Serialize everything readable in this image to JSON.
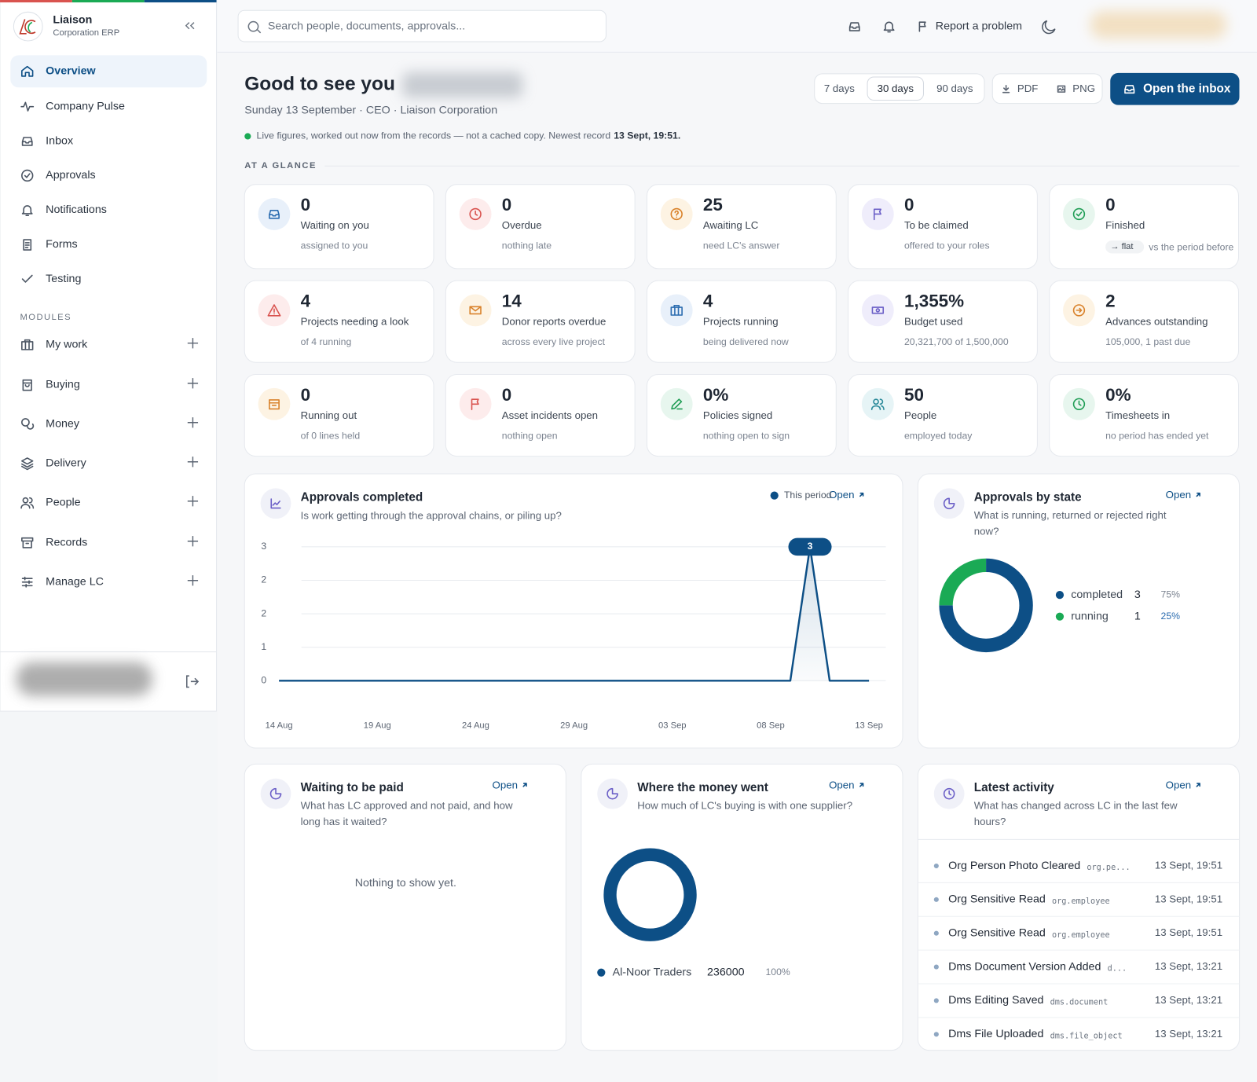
{
  "sidebar": {
    "brand": "Liaison",
    "brand_subtitle": "Corporation ERP",
    "nav": [
      "Overview",
      "Company Pulse",
      "Inbox",
      "Approvals",
      "Notifications",
      "Forms",
      "Testing"
    ],
    "nav_icons": [
      "home",
      "pulse",
      "inbox",
      "check",
      "bell",
      "forms",
      "tick"
    ],
    "active_nav": 0,
    "modules_heading": "MODULES",
    "modules": [
      "My work",
      "Buying",
      "Money",
      "Delivery",
      "People",
      "Records",
      "Manage LC"
    ],
    "module_icons": [
      "briefcase",
      "bag",
      "coins",
      "layers",
      "people",
      "archive",
      "sliders"
    ]
  },
  "topbar": {
    "search_placeholder": "Search people, documents, approvals...",
    "report_problem": "Report a problem"
  },
  "header": {
    "greeting": "Good to see you",
    "subtitle": "Sunday 13 September · CEO · Liaison Corporation",
    "live_note": "Live figures, worked out now from the records — not a cached copy. Newest record",
    "newest_record": "13 Sept, 19:51.",
    "ranges": [
      "7 days",
      "30 days",
      "90 days"
    ],
    "active_range": 1,
    "exports": [
      "PDF",
      "PNG"
    ],
    "open_inbox": "Open the inbox"
  },
  "glance": {
    "heading": "AT A GLANCE",
    "cards": [
      {
        "value": "0",
        "label": "Waiting on you",
        "note": "assigned to you",
        "tone": "blue",
        "icon": "inbox"
      },
      {
        "value": "0",
        "label": "Overdue",
        "note": "nothing late",
        "tone": "red",
        "icon": "clock"
      },
      {
        "value": "25",
        "label": "Awaiting LC",
        "note": "need LC's answer",
        "tone": "amber",
        "icon": "question"
      },
      {
        "value": "0",
        "label": "To be claimed",
        "note": "offered to your roles",
        "tone": "purple",
        "icon": "flag"
      },
      {
        "value": "0",
        "label": "Finished",
        "trend": "→ flat",
        "note": "vs the period before",
        "tone": "green",
        "icon": "check"
      },
      {
        "value": "4",
        "label": "Projects needing a look",
        "note": "of 4 running",
        "tone": "red",
        "icon": "alert"
      },
      {
        "value": "14",
        "label": "Donor reports overdue",
        "note": "across every live project",
        "tone": "amber",
        "icon": "mail"
      },
      {
        "value": "4",
        "label": "Projects running",
        "note": "being delivered now",
        "tone": "blue",
        "icon": "briefcase"
      },
      {
        "value": "1,355%",
        "label": "Budget used",
        "note": "20,321,700 of 1,500,000",
        "tone": "purple",
        "icon": "money"
      },
      {
        "value": "2",
        "label": "Advances outstanding",
        "note": "105,000, 1 past due",
        "tone": "amber",
        "icon": "arrow"
      },
      {
        "value": "0",
        "label": "Running out",
        "note": "of 0 lines held",
        "tone": "amber",
        "icon": "box"
      },
      {
        "value": "0",
        "label": "Asset incidents open",
        "note": "nothing open",
        "tone": "red",
        "icon": "flag"
      },
      {
        "value": "0%",
        "label": "Policies signed",
        "note": "nothing open to sign",
        "tone": "green",
        "icon": "pen"
      },
      {
        "value": "50",
        "label": "People",
        "note": "employed today",
        "tone": "teal",
        "icon": "people"
      },
      {
        "value": "0%",
        "label": "Timesheets in",
        "note": "no period has ended yet",
        "tone": "green",
        "icon": "clock"
      }
    ]
  },
  "chart_data": [
    {
      "type": "line",
      "title": "Approvals completed",
      "subtitle": "Is work getting through the approval chains, or piling up?",
      "open_label": "Open",
      "categories": [
        "14 Aug",
        null,
        null,
        null,
        null,
        "19 Aug",
        null,
        null,
        null,
        null,
        "24 Aug",
        null,
        null,
        null,
        null,
        "29 Aug",
        null,
        null,
        null,
        null,
        "03 Sep",
        null,
        null,
        null,
        null,
        "08 Sep",
        null,
        null,
        null,
        null,
        "13 Sep"
      ],
      "series": [
        {
          "name": "This period",
          "color": "#0d4f86",
          "values": [
            0,
            0,
            0,
            0,
            0,
            0,
            0,
            0,
            0,
            0,
            0,
            0,
            0,
            0,
            0,
            0,
            0,
            0,
            0,
            0,
            0,
            0,
            0,
            0,
            0,
            0,
            0,
            3,
            0,
            0,
            0
          ]
        }
      ],
      "ylim": [
        0,
        3
      ],
      "yticks": [
        0,
        {
          "value": 0.75,
          "label": "1"
        },
        {
          "value": 1.5,
          "label": "2"
        },
        {
          "value": 2.25,
          "label": "2"
        },
        3
      ],
      "grid": true
    },
    {
      "type": "donut",
      "title": "Approvals by state",
      "subtitle": "What is running, returned or rejected right now?",
      "open_label": "Open",
      "categories": [
        "completed",
        "running"
      ],
      "values": [
        3,
        1
      ],
      "shares": [
        75,
        25
      ],
      "share_labels": [
        "75%",
        "25%"
      ],
      "colors": [
        "#0d4f86",
        "#1aaa55"
      ]
    },
    {
      "type": "donut",
      "title": "Where the money went",
      "subtitle": "How much of LC's buying is with one supplier?",
      "open_label": "Open",
      "categories": [
        "Al-Noor Traders"
      ],
      "values": [
        236000
      ],
      "shares": [
        100
      ],
      "share_labels": [
        "100%"
      ],
      "colors": [
        "#0d4f86"
      ]
    }
  ],
  "waiting_to_be_paid": {
    "title": "Waiting to be paid",
    "subtitle": "What has LC approved and not paid, and how long has it waited?",
    "open_label": "Open",
    "empty": "Nothing to show yet."
  },
  "latest_activity": {
    "title": "Latest activity",
    "subtitle": "What has changed across LC in the last few hours?",
    "open_label": "Open",
    "items": [
      {
        "title": "Org Person Photo Cleared",
        "code": "org.pe...",
        "time": "13 Sept, 19:51"
      },
      {
        "title": "Org Sensitive Read",
        "code": "org.employee",
        "time": "13 Sept, 19:51"
      },
      {
        "title": "Org Sensitive Read",
        "code": "org.employee",
        "time": "13 Sept, 19:51"
      },
      {
        "title": "Dms Document Version Added",
        "code": "d...",
        "time": "13 Sept, 13:21"
      },
      {
        "title": "Dms Editing Saved",
        "code": "dms.document",
        "time": "13 Sept, 13:21"
      },
      {
        "title": "Dms File Uploaded",
        "code": "dms.file_object",
        "time": "13 Sept, 13:21"
      }
    ]
  }
}
